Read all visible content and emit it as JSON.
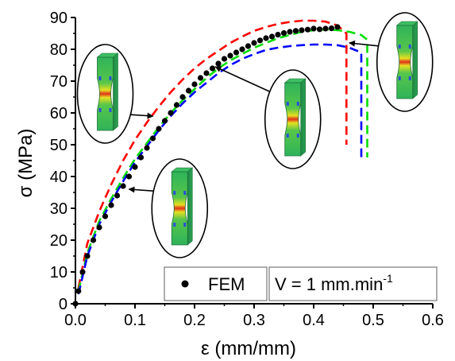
{
  "chart_data": {
    "type": "line",
    "xlabel": "ε (mm/mm)",
    "ylabel": "σ (MPa)",
    "xlim": [
      0.0,
      0.6
    ],
    "ylim": [
      0,
      90
    ],
    "x_ticks": [
      "0.0",
      "0.1",
      "0.2",
      "0.3",
      "0.4",
      "0.5",
      "0.6"
    ],
    "y_ticks": [
      "0",
      "10",
      "20",
      "30",
      "40",
      "50",
      "60",
      "70",
      "80",
      "90"
    ],
    "legend_position": "bottom-right",
    "series": [
      {
        "name": "FEM",
        "style": "dots",
        "color": "#000000",
        "x": [
          0.0,
          0.005,
          0.012,
          0.02,
          0.03,
          0.04,
          0.05,
          0.06,
          0.07,
          0.08,
          0.09,
          0.1,
          0.11,
          0.12,
          0.13,
          0.14,
          0.15,
          0.16,
          0.17,
          0.18,
          0.19,
          0.2,
          0.21,
          0.22,
          0.23,
          0.24,
          0.25,
          0.26,
          0.27,
          0.28,
          0.29,
          0.3,
          0.31,
          0.32,
          0.33,
          0.34,
          0.35,
          0.36,
          0.37,
          0.38,
          0.39,
          0.4,
          0.41,
          0.42,
          0.43,
          0.44
        ],
        "y": [
          0,
          4,
          10,
          15,
          20,
          24,
          27.5,
          31,
          34,
          37,
          40,
          43,
          46,
          49,
          52,
          55,
          57.5,
          60,
          62.5,
          65,
          67,
          69,
          71,
          72.5,
          74,
          75.5,
          77,
          78,
          79,
          80,
          81,
          82,
          82.8,
          83.5,
          84,
          84.6,
          85.1,
          85.5,
          85.8,
          86,
          86.2,
          86.5,
          86.3,
          86.5,
          86.6,
          87
        ]
      },
      {
        "style": "dashed",
        "color": "#ff0000",
        "x": [
          0.005,
          0.02,
          0.04,
          0.06,
          0.08,
          0.1,
          0.12,
          0.14,
          0.16,
          0.18,
          0.2,
          0.22,
          0.24,
          0.26,
          0.28,
          0.3,
          0.32,
          0.34,
          0.36,
          0.38,
          0.4,
          0.42,
          0.44,
          0.455,
          0.455,
          0.455
        ],
        "y": [
          5,
          19,
          29,
          37.5,
          45,
          51.5,
          57,
          62,
          66.5,
          70.5,
          74,
          77,
          79.5,
          82,
          84,
          85.8,
          87,
          88,
          88.6,
          89,
          89,
          88.7,
          87.5,
          85,
          60,
          50
        ]
      },
      {
        "style": "dashed",
        "color": "#00dd00",
        "x": [
          0.005,
          0.02,
          0.04,
          0.06,
          0.08,
          0.1,
          0.12,
          0.14,
          0.16,
          0.18,
          0.2,
          0.22,
          0.24,
          0.26,
          0.28,
          0.3,
          0.32,
          0.34,
          0.36,
          0.38,
          0.4,
          0.42,
          0.44,
          0.46,
          0.48,
          0.49,
          0.49,
          0.49
        ],
        "y": [
          4,
          16,
          26,
          33,
          39.5,
          45.5,
          50.5,
          55.5,
          60,
          64,
          67.5,
          71,
          74,
          76.5,
          78.5,
          80.5,
          82,
          83.5,
          84.5,
          85.5,
          86,
          86.2,
          86,
          85.5,
          84.5,
          83,
          60,
          46
        ]
      },
      {
        "style": "dashed",
        "color": "#0000ff",
        "x": [
          0.005,
          0.02,
          0.04,
          0.06,
          0.08,
          0.1,
          0.12,
          0.14,
          0.16,
          0.18,
          0.2,
          0.22,
          0.24,
          0.26,
          0.28,
          0.3,
          0.32,
          0.34,
          0.36,
          0.38,
          0.4,
          0.42,
          0.44,
          0.46,
          0.48,
          0.48,
          0.48
        ],
        "y": [
          3,
          15,
          25,
          32,
          38.5,
          44.5,
          49.5,
          54.5,
          59,
          63,
          66.5,
          69.5,
          72.5,
          75,
          77,
          78.5,
          79.8,
          80.5,
          81,
          81.3,
          81.5,
          81.5,
          81.3,
          80.5,
          79,
          60,
          46
        ]
      }
    ],
    "legend": {
      "series_label": "FEM",
      "condition_label": "V = 1 mm.min",
      "condition_superscript": "-1"
    },
    "insets": [
      {
        "name": "specimen-inset-1",
        "x": 0.05,
        "y": 66,
        "pointer_to": [
          0.13,
          59
        ]
      },
      {
        "name": "specimen-inset-2",
        "x": 0.175,
        "y": 30,
        "pointer_to": [
          0.09,
          36
        ]
      },
      {
        "name": "specimen-inset-3",
        "x": 0.365,
        "y": 58,
        "pointer_to": [
          0.235,
          74.5
        ]
      },
      {
        "name": "specimen-inset-4",
        "x": 0.553,
        "y": 76,
        "pointer_to": [
          0.46,
          82
        ]
      }
    ]
  }
}
